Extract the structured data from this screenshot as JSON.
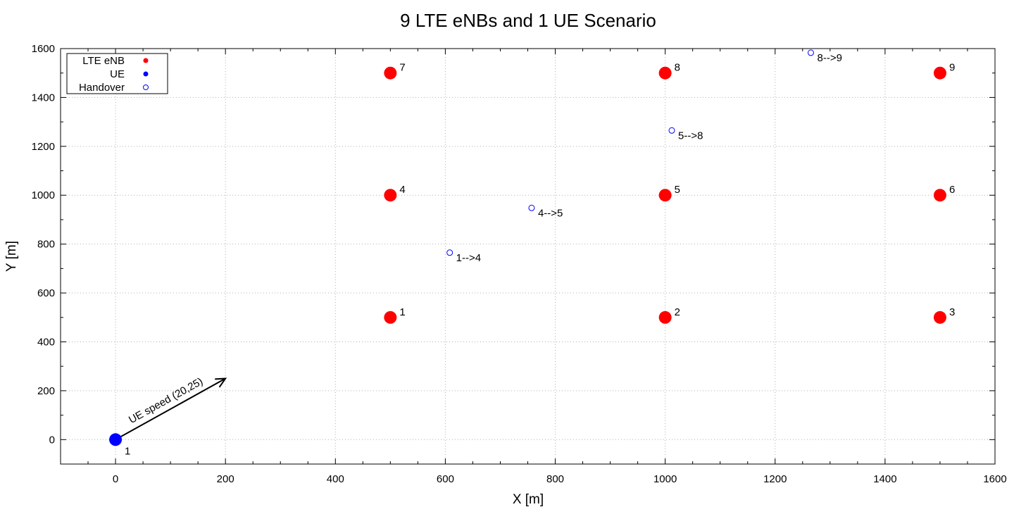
{
  "chart_data": {
    "type": "scatter",
    "title": "9 LTE eNBs and 1 UE Scenario",
    "xlabel": "X [m]",
    "ylabel": "Y [m]",
    "xlim": [
      -100,
      1600
    ],
    "ylim": [
      -100,
      1600
    ],
    "xticks": [
      0,
      200,
      400,
      600,
      800,
      1000,
      1200,
      1400,
      1600
    ],
    "yticks": [
      0,
      200,
      400,
      600,
      800,
      1000,
      1200,
      1400,
      1600
    ],
    "grid": true,
    "legend_position": "top-left",
    "legend": [
      {
        "label": "LTE eNB",
        "color": "#ff0000",
        "marker": "filled-circle"
      },
      {
        "label": "UE",
        "color": "#0000ff",
        "marker": "filled-circle"
      },
      {
        "label": "Handover",
        "color": "#0000ff",
        "marker": "open-circle"
      }
    ],
    "series": [
      {
        "name": "LTE eNB",
        "color": "#ff0000",
        "points": [
          {
            "x": 500,
            "y": 500,
            "label": "1"
          },
          {
            "x": 1000,
            "y": 500,
            "label": "2"
          },
          {
            "x": 1500,
            "y": 500,
            "label": "3"
          },
          {
            "x": 500,
            "y": 1000,
            "label": "4"
          },
          {
            "x": 1000,
            "y": 1000,
            "label": "5"
          },
          {
            "x": 1500,
            "y": 1000,
            "label": "6"
          },
          {
            "x": 500,
            "y": 1500,
            "label": "7"
          },
          {
            "x": 1000,
            "y": 1500,
            "label": "8"
          },
          {
            "x": 1500,
            "y": 1500,
            "label": "9"
          }
        ]
      },
      {
        "name": "UE",
        "color": "#0000ff",
        "points": [
          {
            "x": 0,
            "y": 0,
            "label": "1"
          }
        ]
      },
      {
        "name": "Handover",
        "color": "#0000ff",
        "points": [
          {
            "x": 608,
            "y": 765,
            "label": "1-->4"
          },
          {
            "x": 757,
            "y": 948,
            "label": "4-->5"
          },
          {
            "x": 1012,
            "y": 1265,
            "label": "5-->8"
          },
          {
            "x": 1265,
            "y": 1583,
            "label": "8-->9"
          }
        ]
      }
    ],
    "annotations": [
      {
        "type": "arrow",
        "from": [
          0,
          0
        ],
        "to": [
          200,
          250
        ],
        "label": "UE speed (20,25)"
      }
    ]
  }
}
